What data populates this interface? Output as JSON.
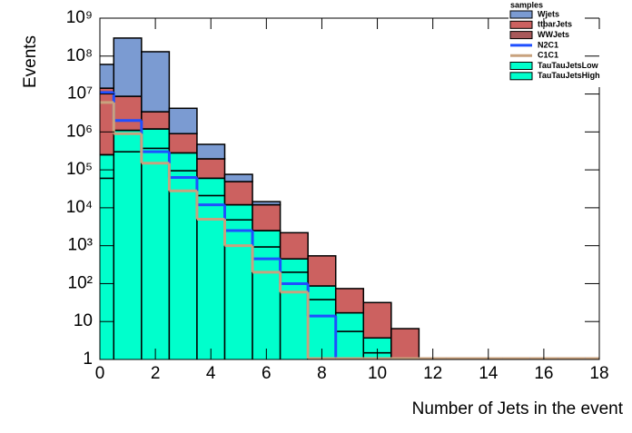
{
  "chart_data": {
    "type": "histogram",
    "stacked": true,
    "log_y": true,
    "y_label": "Events",
    "x_label": "Number of Jets in the event",
    "legend_title": "samples",
    "legend": "top-right",
    "bins": [
      -0.5,
      0.5,
      1.5,
      2.5,
      3.5,
      4.5,
      5.5,
      6.5,
      7.5,
      8.5,
      9.5,
      10.5,
      11.5,
      12.5,
      13.5,
      14.5,
      15.5,
      16.5,
      17.5,
      18.5
    ],
    "xlim": [
      0,
      18
    ],
    "xticks": [
      0,
      2,
      4,
      6,
      8,
      10,
      12,
      14,
      16,
      18
    ],
    "ylim": [
      1,
      1000000000
    ],
    "yticks": [
      1,
      10,
      {
        "value": 100,
        "label": "10²"
      },
      {
        "value": 1000,
        "label": "10³"
      },
      {
        "value": 10000,
        "label": "10⁴"
      },
      {
        "value": 100000,
        "label": "10⁵"
      },
      {
        "value": 1000000,
        "label": "10⁶"
      },
      {
        "value": 10000000,
        "label": "10⁷"
      },
      {
        "value": 100000000,
        "label": "10⁸"
      },
      {
        "value": 1000000000,
        "label": "10⁹"
      }
    ],
    "series": [
      {
        "name": "Wjets",
        "color": "#7b9bd2",
        "style": "fill",
        "values": [
          46000000,
          290000000,
          127000000,
          3300000,
          275000,
          27000,
          2500,
          0,
          0,
          0,
          0,
          0,
          0,
          0,
          0,
          0,
          0,
          0,
          0
        ]
      },
      {
        "name": "ttbarJets",
        "color": "#cc6160",
        "style": "fill",
        "values": [
          14000000,
          7600000,
          2200000,
          620000,
          135000,
          37000,
          9500,
          1750,
          453,
          57,
          28,
          6.5,
          0,
          0,
          0,
          0,
          0,
          0,
          0
        ]
      },
      {
        "name": "WWJets",
        "color": "#a8595a",
        "style": "fill",
        "values": [
          2000,
          5000,
          3000,
          1000,
          300,
          50,
          10,
          0,
          0,
          0,
          0,
          0,
          0,
          0,
          0,
          0,
          0,
          0,
          0
        ]
      },
      {
        "name": "N2C1",
        "color": "#1f4fff",
        "style": "line",
        "values": [
          11000000,
          2000000,
          300000,
          63000,
          12000,
          2500,
          450,
          100,
          14,
          0,
          0,
          0,
          0,
          0,
          0,
          0,
          0,
          0,
          0
        ]
      },
      {
        "name": "C1C1",
        "color": "#c8a27e",
        "style": "line",
        "values": [
          6000000,
          900000,
          150000,
          28000,
          5000,
          1000,
          200,
          60,
          0,
          0,
          0,
          0,
          0,
          0,
          0,
          0,
          0,
          0,
          0
        ]
      },
      {
        "name": "TauTauJetsLow",
        "color": "#00ffcc",
        "style": "fill",
        "values": [
          190000,
          800000,
          830000,
          185000,
          39000,
          7200,
          1570,
          250,
          49,
          11.5,
          2.2,
          0,
          0,
          0,
          0,
          0,
          0,
          0,
          0
        ]
      },
      {
        "name": "TauTauJetsHigh",
        "color": "#00ffcc",
        "style": "fill",
        "values": [
          60000,
          300000,
          370000,
          95000,
          21000,
          4800,
          930,
          200,
          38,
          5.5,
          1.5,
          0,
          0,
          0,
          0,
          0,
          0,
          0,
          0
        ]
      }
    ]
  }
}
